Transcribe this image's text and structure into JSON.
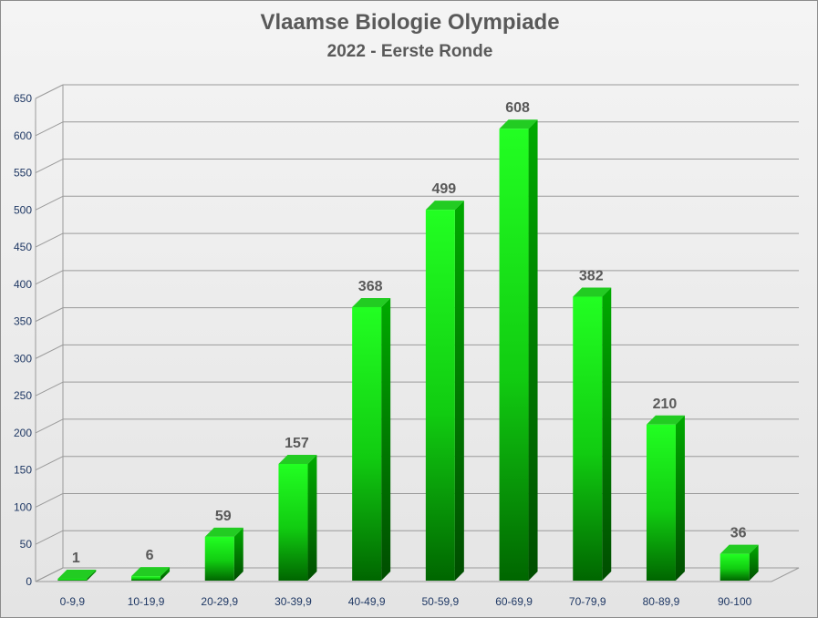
{
  "chart_data": {
    "type": "bar",
    "title": "Vlaamse Biologie Olympiade",
    "subtitle": "2022 - Eerste Ronde",
    "categories": [
      "0-9,9",
      "10-19,9",
      "20-29,9",
      "30-39,9",
      "40-49,9",
      "50-59,9",
      "60-69,9",
      "70-79,9",
      "80-89,9",
      "90-100"
    ],
    "values": [
      1,
      6,
      59,
      157,
      368,
      499,
      608,
      382,
      210,
      36
    ],
    "xlabel": "",
    "ylabel": "",
    "ylim": [
      0,
      650
    ],
    "yticks": [
      0,
      50,
      100,
      150,
      200,
      250,
      300,
      350,
      400,
      450,
      500,
      550,
      600,
      650
    ],
    "grid": true,
    "legend": "none",
    "colors": {
      "bar_top": "#22ff22",
      "bar_bottom": "#006600",
      "bar_side": "#008800",
      "bar_cap": "#22cc22",
      "grid": "#9a9a9a",
      "text": "#595959",
      "tick_text": "#1f3864"
    }
  }
}
